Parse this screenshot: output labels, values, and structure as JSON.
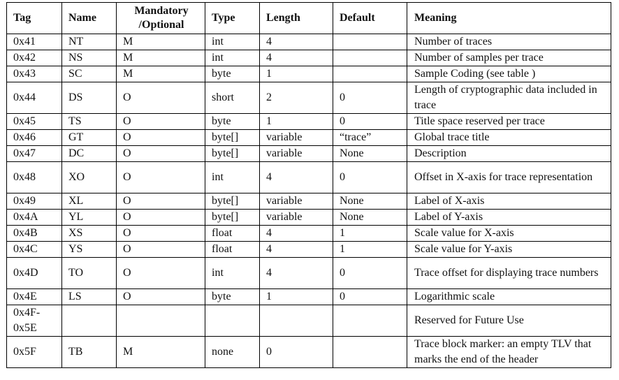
{
  "table": {
    "headers": [
      "Tag",
      "Name",
      "Mandatory\n/Optional",
      "Type",
      "Length",
      "Default",
      "Meaning"
    ],
    "rows": [
      [
        "0x41",
        "NT",
        "M",
        "int",
        "4",
        "",
        "Number of traces"
      ],
      [
        "0x42",
        "NS",
        "M",
        "int",
        "4",
        "",
        "Number of samples per trace"
      ],
      [
        "0x43",
        "SC",
        "M",
        "byte",
        "1",
        "",
        "Sample Coding (see table )"
      ],
      [
        "0x44",
        "DS",
        "O",
        "short",
        "2",
        "0",
        "Length of cryptographic data included in trace"
      ],
      [
        "0x45",
        "TS",
        "O",
        "byte",
        "1",
        "0",
        "Title space reserved per trace"
      ],
      [
        "0x46",
        "GT",
        "O",
        "byte[]",
        "variable",
        "“trace”",
        "Global trace title"
      ],
      [
        "0x47",
        "DC",
        "O",
        "byte[]",
        "variable",
        "None",
        "Description"
      ],
      [
        "0x48",
        "XO",
        "O",
        "int",
        "4",
        "0",
        "Offset in X-axis for trace representation"
      ],
      [
        "0x49",
        "XL",
        "O",
        "byte[]",
        "variable",
        "None",
        "Label of X-axis"
      ],
      [
        "0x4A",
        "YL",
        "O",
        "byte[]",
        "variable",
        "None",
        "Label of Y-axis"
      ],
      [
        "0x4B",
        "XS",
        "O",
        "float",
        "4",
        "1",
        "Scale value for X-axis"
      ],
      [
        "0x4C",
        "YS",
        "O",
        "float",
        "4",
        "1",
        "Scale value for Y-axis"
      ],
      [
        "0x4D",
        "TO",
        "O",
        "int",
        "4",
        "0",
        "Trace offset for displaying trace numbers"
      ],
      [
        "0x4E",
        "LS",
        "O",
        "byte",
        "1",
        "0",
        "Logarithmic scale"
      ],
      [
        "0x4F-\n0x5E",
        "",
        "",
        "",
        "",
        "",
        "Reserved for Future Use"
      ],
      [
        "0x5F",
        "TB",
        "M",
        "none",
        "0",
        "",
        "Trace block marker: an empty TLV that marks the end of the header"
      ]
    ],
    "tall_rows": [
      3,
      7,
      12,
      14,
      15
    ]
  }
}
